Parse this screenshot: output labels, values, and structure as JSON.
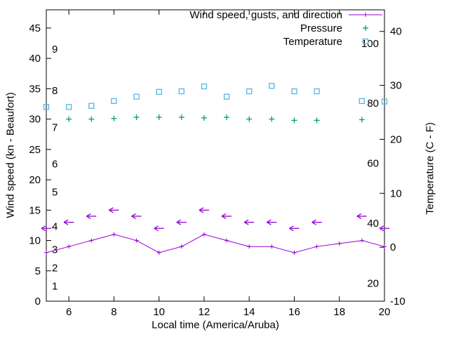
{
  "chart_data": {
    "type": "line",
    "title": "",
    "xlabel": "Local time (America/Aruba)",
    "ylabel_left": "Wind speed (kn - Beaufort)",
    "ylabel_right": "Temperature (C - F)",
    "grid": false,
    "background": "#ffffff",
    "axis_color": "#000000",
    "x_axis": {
      "min": 5,
      "max": 20,
      "ticks": [
        6,
        8,
        10,
        12,
        14,
        16,
        18,
        20
      ]
    },
    "y_left": {
      "min": 0,
      "max": 48,
      "ticks": [
        0,
        5,
        10,
        15,
        20,
        25,
        30,
        35,
        40,
        45
      ],
      "beaufort_labels": [
        {
          "beaufort": 1,
          "kn": 2.5
        },
        {
          "beaufort": 2,
          "kn": 5.5
        },
        {
          "beaufort": 3,
          "kn": 8.5
        },
        {
          "beaufort": 4,
          "kn": 12.3
        },
        {
          "beaufort": 5,
          "kn": 18.0
        },
        {
          "beaufort": 6,
          "kn": 22.6
        },
        {
          "beaufort": 7,
          "kn": 28.6
        },
        {
          "beaufort": 8,
          "kn": 34.7
        },
        {
          "beaufort": 9,
          "kn": 41.5
        }
      ]
    },
    "y_right": {
      "min": -10,
      "max": 44,
      "ticks": [
        -10,
        0,
        10,
        20,
        30,
        40
      ],
      "fahrenheit_labels": [
        20,
        40,
        60,
        80,
        100
      ]
    },
    "x": [
      5,
      6,
      7,
      8,
      9,
      10,
      11,
      12,
      13,
      14,
      15,
      16,
      17,
      18,
      19,
      20
    ],
    "series": [
      {
        "name": "Wind speed",
        "axis": "left",
        "color": "#9400d3",
        "style": "line-plus",
        "values": [
          8,
          9,
          10,
          11,
          10,
          8,
          9,
          11,
          10,
          9,
          9,
          8,
          9,
          9.5,
          10,
          9
        ]
      },
      {
        "name": "Gusts and direction",
        "axis": "left",
        "color": "#9400d3",
        "style": "arrow-left",
        "values": [
          12,
          13,
          14,
          15,
          14,
          12,
          13,
          15,
          14,
          13,
          13,
          12,
          13,
          null,
          14,
          12
        ]
      },
      {
        "name": "Pressure",
        "axis": "left",
        "color": "#009e73",
        "style": "plus",
        "values": [
          null,
          30.0,
          30.0,
          30.1,
          30.3,
          30.3,
          30.3,
          30.2,
          30.3,
          30.0,
          30.0,
          29.8,
          29.8,
          null,
          29.9,
          null
        ]
      },
      {
        "name": "Temperature",
        "axis": "right",
        "color": "#56b4e9",
        "style": "open-square",
        "values": [
          26.0,
          26.0,
          26.2,
          27.1,
          27.9,
          28.8,
          28.9,
          29.8,
          27.9,
          28.9,
          29.9,
          28.9,
          28.9,
          null,
          27.1,
          27.0
        ]
      }
    ],
    "legend": {
      "position": "top-right",
      "entries": [
        {
          "label": "Wind speed, gusts, and direction",
          "series": 0
        },
        {
          "label": "Pressure",
          "series": 2
        },
        {
          "label": "Temperature",
          "series": 3
        }
      ]
    }
  }
}
